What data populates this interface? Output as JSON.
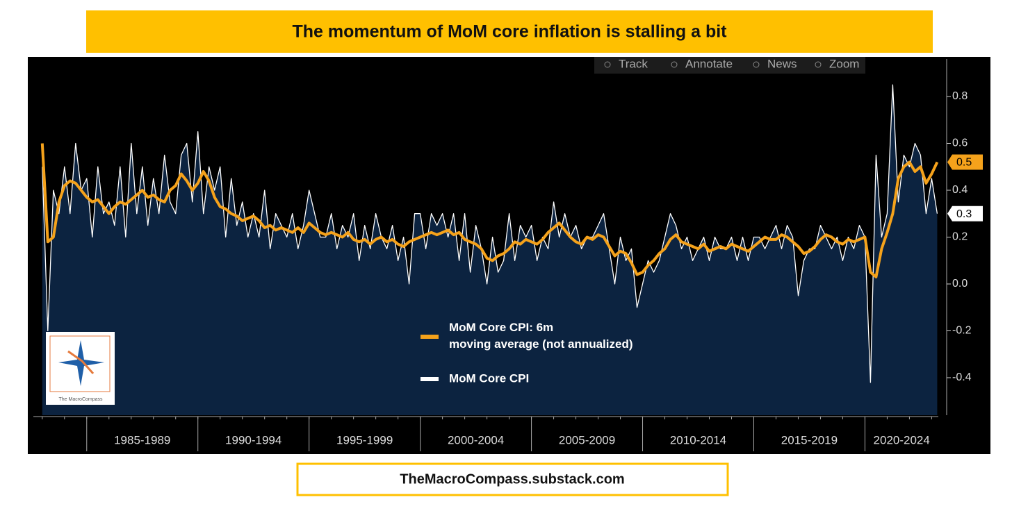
{
  "chart_data": {
    "type": "line",
    "title": "The momentum of MoM core inflation is stalling a bit",
    "footer": "TheMacroCompass.substack.com",
    "logo_text": "The MacroCompass",
    "toolbar": [
      "Track",
      "Annotate",
      "News",
      "Zoom"
    ],
    "x": [
      1983,
      1983.25,
      1983.5,
      1983.75,
      1984,
      1984.25,
      1984.5,
      1984.75,
      1985,
      1985.25,
      1985.5,
      1985.75,
      1986,
      1986.25,
      1986.5,
      1986.75,
      1987,
      1987.25,
      1987.5,
      1987.75,
      1988,
      1988.25,
      1988.5,
      1988.75,
      1989,
      1989.25,
      1989.5,
      1989.75,
      1990,
      1990.25,
      1990.5,
      1990.75,
      1991,
      1991.25,
      1991.5,
      1991.75,
      1992,
      1992.25,
      1992.5,
      1992.75,
      1993,
      1993.25,
      1993.5,
      1993.75,
      1994,
      1994.25,
      1994.5,
      1994.75,
      1995,
      1995.25,
      1995.5,
      1995.75,
      1996,
      1996.25,
      1996.5,
      1996.75,
      1997,
      1997.25,
      1997.5,
      1997.75,
      1998,
      1998.25,
      1998.5,
      1998.75,
      1999,
      1999.25,
      1999.5,
      1999.75,
      2000,
      2000.25,
      2000.5,
      2000.75,
      2001,
      2001.25,
      2001.5,
      2001.75,
      2002,
      2002.25,
      2002.5,
      2002.75,
      2003,
      2003.25,
      2003.5,
      2003.75,
      2004,
      2004.25,
      2004.5,
      2004.75,
      2005,
      2005.25,
      2005.5,
      2005.75,
      2006,
      2006.25,
      2006.5,
      2006.75,
      2007,
      2007.25,
      2007.5,
      2007.75,
      2008,
      2008.25,
      2008.5,
      2008.75,
      2009,
      2009.25,
      2009.5,
      2009.75,
      2010,
      2010.25,
      2010.5,
      2010.75,
      2011,
      2011.25,
      2011.5,
      2011.75,
      2012,
      2012.25,
      2012.5,
      2012.75,
      2013,
      2013.25,
      2013.5,
      2013.75,
      2014,
      2014.25,
      2014.5,
      2014.75,
      2015,
      2015.25,
      2015.5,
      2015.75,
      2016,
      2016.25,
      2016.5,
      2016.75,
      2017,
      2017.25,
      2017.5,
      2017.75,
      2018,
      2018.25,
      2018.5,
      2018.75,
      2019,
      2019.25,
      2019.5,
      2019.75,
      2020,
      2020.25,
      2020.5,
      2020.75,
      2021,
      2021.25,
      2021.5,
      2021.75,
      2022,
      2022.25,
      2022.5,
      2022.75,
      2023,
      2023.25
    ],
    "series": [
      {
        "name": "MoM Core CPI",
        "color": "#ffffff",
        "area_color": "#0c2340",
        "end_label": "0.3",
        "values": [
          0.5,
          -0.2,
          0.4,
          0.3,
          0.5,
          0.3,
          0.6,
          0.4,
          0.45,
          0.2,
          0.5,
          0.3,
          0.35,
          0.25,
          0.5,
          0.2,
          0.6,
          0.3,
          0.5,
          0.25,
          0.45,
          0.3,
          0.55,
          0.35,
          0.3,
          0.55,
          0.6,
          0.35,
          0.65,
          0.3,
          0.5,
          0.4,
          0.5,
          0.2,
          0.45,
          0.25,
          0.35,
          0.2,
          0.3,
          0.2,
          0.4,
          0.15,
          0.3,
          0.25,
          0.2,
          0.3,
          0.15,
          0.25,
          0.4,
          0.3,
          0.2,
          0.2,
          0.3,
          0.15,
          0.25,
          0.2,
          0.3,
          0.1,
          0.25,
          0.15,
          0.3,
          0.2,
          0.15,
          0.25,
          0.1,
          0.2,
          0.0,
          0.3,
          0.3,
          0.15,
          0.3,
          0.25,
          0.3,
          0.2,
          0.3,
          0.1,
          0.3,
          0.05,
          0.25,
          0.15,
          0.0,
          0.2,
          0.05,
          0.1,
          0.3,
          0.1,
          0.25,
          0.2,
          0.25,
          0.1,
          0.2,
          0.15,
          0.35,
          0.2,
          0.3,
          0.2,
          0.25,
          0.15,
          0.2,
          0.2,
          0.25,
          0.3,
          0.15,
          0.0,
          0.2,
          0.1,
          0.15,
          -0.1,
          0.0,
          0.1,
          0.05,
          0.1,
          0.2,
          0.3,
          0.25,
          0.15,
          0.2,
          0.1,
          0.15,
          0.2,
          0.1,
          0.2,
          0.15,
          0.15,
          0.2,
          0.1,
          0.2,
          0.1,
          0.2,
          0.2,
          0.15,
          0.2,
          0.25,
          0.15,
          0.25,
          0.2,
          -0.05,
          0.1,
          0.15,
          0.15,
          0.25,
          0.2,
          0.15,
          0.2,
          0.1,
          0.2,
          0.15,
          0.25,
          0.2,
          -0.42,
          0.55,
          0.2,
          0.3,
          0.85,
          0.35,
          0.55,
          0.5,
          0.6,
          0.55,
          0.3,
          0.45,
          0.3
        ]
      },
      {
        "name": "MoM Core CPI: 6m moving average (not annualized)",
        "color": "#f5a21b",
        "end_label": "0.5",
        "values": [
          0.6,
          0.18,
          0.2,
          0.35,
          0.42,
          0.44,
          0.43,
          0.4,
          0.37,
          0.35,
          0.36,
          0.33,
          0.3,
          0.33,
          0.35,
          0.34,
          0.36,
          0.38,
          0.4,
          0.37,
          0.38,
          0.36,
          0.35,
          0.4,
          0.42,
          0.47,
          0.44,
          0.4,
          0.43,
          0.48,
          0.44,
          0.37,
          0.33,
          0.32,
          0.3,
          0.29,
          0.27,
          0.28,
          0.29,
          0.27,
          0.24,
          0.25,
          0.23,
          0.24,
          0.23,
          0.22,
          0.24,
          0.22,
          0.26,
          0.24,
          0.22,
          0.21,
          0.22,
          0.21,
          0.2,
          0.22,
          0.19,
          0.18,
          0.19,
          0.17,
          0.19,
          0.2,
          0.18,
          0.19,
          0.17,
          0.16,
          0.18,
          0.19,
          0.2,
          0.21,
          0.22,
          0.21,
          0.22,
          0.23,
          0.21,
          0.22,
          0.19,
          0.18,
          0.17,
          0.15,
          0.11,
          0.1,
          0.12,
          0.13,
          0.15,
          0.18,
          0.17,
          0.19,
          0.18,
          0.17,
          0.19,
          0.22,
          0.24,
          0.26,
          0.23,
          0.2,
          0.18,
          0.17,
          0.2,
          0.19,
          0.21,
          0.2,
          0.16,
          0.12,
          0.14,
          0.13,
          0.09,
          0.04,
          0.05,
          0.08,
          0.1,
          0.13,
          0.15,
          0.19,
          0.21,
          0.18,
          0.17,
          0.16,
          0.15,
          0.17,
          0.14,
          0.15,
          0.16,
          0.15,
          0.17,
          0.16,
          0.15,
          0.14,
          0.16,
          0.18,
          0.2,
          0.19,
          0.19,
          0.21,
          0.2,
          0.18,
          0.16,
          0.13,
          0.14,
          0.16,
          0.19,
          0.21,
          0.2,
          0.18,
          0.17,
          0.19,
          0.18,
          0.19,
          0.2,
          0.05,
          0.03,
          0.15,
          0.22,
          0.3,
          0.45,
          0.5,
          0.52,
          0.48,
          0.5,
          0.43,
          0.47,
          0.52
        ]
      }
    ],
    "xlim": [
      1982.6,
      2023.3
    ],
    "xticks": [
      {
        "value": 1985,
        "label": "1985-1989"
      },
      {
        "value": 1990,
        "label": "1990-1994"
      },
      {
        "value": 1995,
        "label": "1995-1999"
      },
      {
        "value": 2000,
        "label": "2000-2004"
      },
      {
        "value": 2005,
        "label": "2005-2009"
      },
      {
        "value": 2010,
        "label": "2010-2014"
      },
      {
        "value": 2015,
        "label": "2015-2019"
      },
      {
        "value": 2020,
        "label": "2020-2024"
      }
    ],
    "ylim": [
      -0.56,
      0.96
    ],
    "yticks": [
      -0.4,
      -0.2,
      {
        "value": 0,
        "label": "0.0"
      },
      0.2,
      0.4,
      0.6,
      0.8
    ],
    "grid": false
  }
}
